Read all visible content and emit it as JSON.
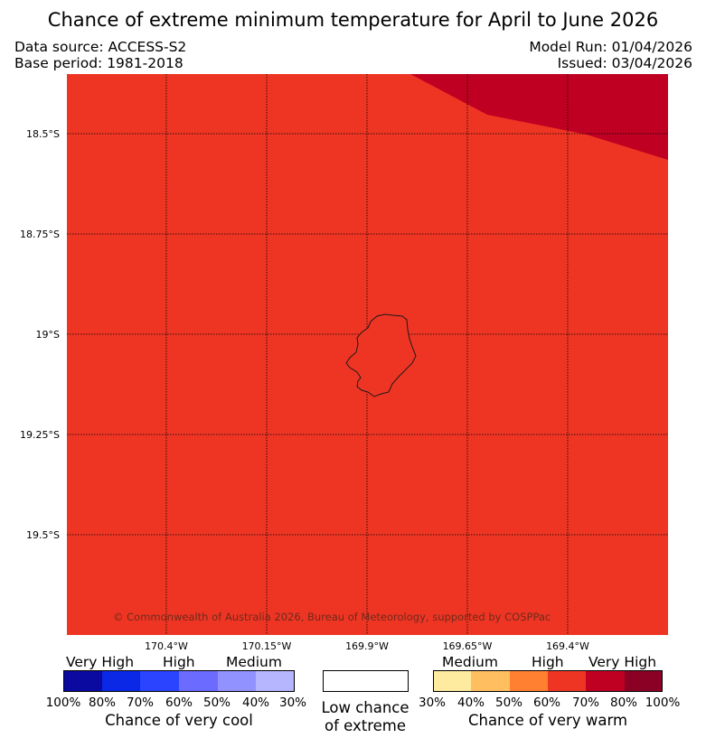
{
  "title": "Chance of extreme minimum temperature for April to June 2026",
  "data_source": "Data source: ACCESS-S2",
  "base_period": "Base period: 1981-2018",
  "model_run": "Model Run: 01/04/2026",
  "issued": "Issued: 03/04/2026",
  "map": {
    "latitudes": [
      "18.5°S",
      "18.75°S",
      "19°S",
      "19.25°S",
      "19.5°S"
    ],
    "longitudes": [
      "170.4°W",
      "170.15°W",
      "169.9°W",
      "169.65°W",
      "169.4°W"
    ],
    "copyright": "© Commonwealth of Australia 2026, Bureau of Meteorology, supported by COSPPac",
    "colors": {
      "main_region": "#ee3524",
      "high_region": "#c00023",
      "coast": "#1a1a1a",
      "grid": "#000000"
    }
  },
  "legend": {
    "cool": {
      "levels": [
        "Very High",
        "High",
        "Medium"
      ],
      "ticks": [
        "100%",
        "80%",
        "70%",
        "60%",
        "50%",
        "40%",
        "30%"
      ],
      "caption": "Chance of very cool",
      "colors": [
        "#0a0aa0",
        "#0a28e6",
        "#2a44ff",
        "#6b6bff",
        "#9191ff",
        "#b6b6ff"
      ]
    },
    "neutral": {
      "caption_line1": "Low chance",
      "caption_line2": "of extreme",
      "color": "#ffffff"
    },
    "warm": {
      "levels": [
        "Medium",
        "High",
        "Very High"
      ],
      "ticks": [
        "30%",
        "40%",
        "50%",
        "60%",
        "70%",
        "80%",
        "100%"
      ],
      "caption": "Chance of very warm",
      "colors": [
        "#ffeba0",
        "#ffbf60",
        "#ff8030",
        "#ee3524",
        "#c00023",
        "#8b0025"
      ]
    }
  }
}
